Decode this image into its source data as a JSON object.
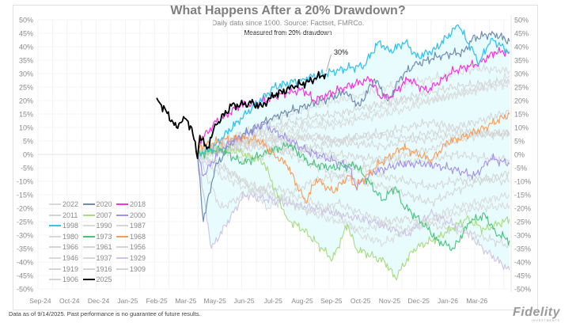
{
  "header": {
    "title": "What Happens After a 20% Drawdown?",
    "subtitle": "Daily data since 1900.  Source: Factset, FMRCo.",
    "note": "Measured from 20% drawdown"
  },
  "footer": {
    "disclaimer": "Data as of 9/14/2025. Past performance is no guarantee of future results.",
    "logo": "Fidelity",
    "logo_sub": "INVESTMENTS"
  },
  "chart_data": {
    "type": "line",
    "title": "What Happens After a 20% Drawdown?",
    "xlabel": "",
    "ylabel": "",
    "x_units": "trading days from 20% drawdown (approx.)",
    "xlim": [
      -137,
      268
    ],
    "ylim": [
      -50,
      50
    ],
    "y_tick_step": 5,
    "y_tick_format": "percent",
    "x_tick_labels": [
      "Sep-24",
      "Oct-24",
      "Dec-24",
      "Jan-25",
      "Feb-25",
      "Mar-25",
      "May-25",
      "Jun-25",
      "Jul-25",
      "Aug-25",
      "Sep-25",
      "Oct-25",
      "Nov-25",
      "Dec-25",
      "Jan-26",
      "Mar-26"
    ],
    "x_tick_start": -135,
    "x_tick_step": 25,
    "grid": true,
    "shaded_band": {
      "description": "range of all episodes",
      "color": "#e8fbfd"
    },
    "annotation": {
      "text": "30%",
      "x": 110,
      "y": 30
    },
    "legend_position": "bottom-left",
    "series": [
      {
        "name": "2022",
        "color": "#d9d9d9",
        "width": 1,
        "x": [
          0,
          20,
          40,
          60,
          80,
          100,
          120,
          140,
          160,
          180,
          200,
          220,
          240,
          268
        ],
        "y": [
          0,
          5,
          8,
          12,
          15,
          18,
          20,
          22,
          25,
          26,
          28,
          30,
          32,
          31
        ]
      },
      {
        "name": "2020",
        "color": "#6f8db3",
        "width": 1.2,
        "x": [
          0,
          5,
          15,
          30,
          50,
          65,
          80,
          127,
          139,
          152,
          164,
          175,
          186,
          197,
          211,
          229,
          236,
          254,
          268
        ],
        "y": [
          0,
          -25,
          -5,
          5,
          10,
          14,
          16,
          23,
          18,
          28,
          20,
          29,
          33,
          35,
          37,
          38,
          43,
          45,
          42
        ]
      },
      {
        "name": "2018",
        "color": "#ff2fe6",
        "width": 1.2,
        "x": [
          0,
          2,
          16,
          36,
          50,
          77,
          91,
          100,
          127,
          149,
          156,
          165,
          181,
          197,
          220,
          242,
          256,
          268
        ],
        "y": [
          0,
          5,
          12,
          18,
          19,
          23,
          24,
          20,
          25,
          28,
          22,
          21,
          28,
          23.5,
          31,
          34,
          38,
          38
        ]
      },
      {
        "name": "2011",
        "color": "#d2d2d2",
        "width": 1,
        "x": [
          0,
          20,
          40,
          60,
          80,
          100,
          120,
          140,
          160,
          180,
          200,
          220,
          240,
          268
        ],
        "y": [
          0,
          3,
          6,
          10,
          12,
          14,
          15,
          17,
          19,
          21,
          23,
          25,
          26,
          27
        ]
      },
      {
        "name": "2007",
        "color": "#a8dc7e",
        "width": 1.1,
        "x": [
          0,
          30,
          57,
          77,
          91,
          116,
          129,
          136,
          161,
          170,
          186,
          206,
          231,
          247,
          268
        ],
        "y": [
          0,
          2,
          -3,
          -24,
          -28,
          -39,
          -26,
          -35,
          -40,
          -46,
          -35,
          -31,
          -24,
          -28,
          -24
        ]
      },
      {
        "name": "2000",
        "color": "#a78ef2",
        "width": 1.1,
        "x": [
          0,
          5,
          20,
          57,
          93,
          130,
          136,
          152,
          175,
          197,
          220,
          238,
          252,
          268
        ],
        "y": [
          0,
          -8,
          2,
          11,
          1.5,
          -4.5,
          -12,
          -6.5,
          -3.5,
          -3.5,
          -5.5,
          -8,
          -1.5,
          -3.5
        ]
      },
      {
        "name": "1998",
        "color": "#35c3f2",
        "width": 1.3,
        "x": [
          0,
          12,
          34,
          66,
          90,
          129,
          143,
          156,
          165,
          179,
          188,
          204,
          224,
          242,
          252,
          268
        ],
        "y": [
          0,
          2,
          12,
          25,
          28,
          32,
          33,
          42,
          38,
          42,
          36,
          39,
          48,
          34,
          43,
          38
        ]
      },
      {
        "name": "1990",
        "color": "#dadada",
        "width": 1,
        "x": [
          0,
          20,
          40,
          60,
          80,
          100,
          120,
          140,
          160,
          180,
          200,
          220,
          240,
          268
        ],
        "y": [
          0,
          2,
          4,
          6,
          8,
          10,
          11,
          13,
          15,
          17,
          20,
          22,
          24,
          26
        ]
      },
      {
        "name": "1987",
        "color": "#d6d6d6",
        "width": 1,
        "x": [
          0,
          20,
          40,
          60,
          80,
          100,
          120,
          140,
          160,
          180,
          200,
          220,
          240,
          268
        ],
        "y": [
          0,
          -20,
          -15,
          -12,
          -14,
          -10,
          -8,
          -5,
          -2,
          0,
          2,
          5,
          7,
          8
        ]
      },
      {
        "name": "1980",
        "color": "#d9d9d9",
        "width": 1,
        "x": [
          0,
          20,
          40,
          60,
          80,
          100,
          120,
          140,
          160,
          180,
          200,
          220,
          240,
          268
        ],
        "y": [
          0,
          4,
          7,
          9,
          10,
          12,
          12,
          14,
          17,
          20,
          20,
          22,
          24,
          29
        ]
      },
      {
        "name": "1973",
        "color": "#48c47a",
        "width": 1.1,
        "x": [
          0,
          20,
          39,
          57,
          79,
          97,
          116,
          136,
          159,
          170,
          176,
          197,
          206,
          220,
          234,
          247,
          256,
          268
        ],
        "y": [
          0,
          2,
          -3.5,
          0.5,
          3.5,
          -3.5,
          -5,
          -4,
          -17,
          -12,
          -18.5,
          -27,
          -32,
          -35,
          -25,
          -22.5,
          -29,
          -32
        ]
      },
      {
        "name": "1968",
        "color": "#ff9a55",
        "width": 1.1,
        "x": [
          0,
          2,
          29,
          52,
          66,
          77,
          93,
          102,
          116,
          130,
          136,
          156,
          176,
          201,
          215,
          229,
          247,
          268
        ],
        "y": [
          0,
          3,
          6,
          5.5,
          0,
          -4,
          -18,
          -9,
          -14,
          -8,
          -12,
          -3.5,
          2.5,
          -2,
          4.5,
          6.5,
          10,
          15
        ]
      },
      {
        "name": "1966",
        "color": "#d4d4d4",
        "width": 1,
        "x": [
          0,
          20,
          40,
          60,
          80,
          100,
          120,
          140,
          160,
          180,
          200,
          220,
          240,
          268
        ],
        "y": [
          0,
          2,
          3,
          5,
          6,
          6,
          5,
          7,
          8,
          10,
          12,
          10,
          12,
          16
        ]
      },
      {
        "name": "1961",
        "color": "#d4d4d4",
        "width": 1,
        "x": [
          0,
          20,
          40,
          60,
          80,
          100,
          120,
          140,
          160,
          180,
          200,
          220,
          240,
          268
        ],
        "y": [
          0,
          3,
          4,
          5,
          6,
          7,
          5,
          6,
          7,
          6,
          8,
          9,
          8,
          7
        ]
      },
      {
        "name": "1956",
        "color": "#d4d4d4",
        "width": 1,
        "x": [
          0,
          20,
          40,
          60,
          80,
          100,
          120,
          140,
          160,
          180,
          200,
          220,
          240,
          268
        ],
        "y": [
          0,
          1,
          -2,
          0,
          2,
          3,
          4,
          4,
          3,
          5,
          6,
          7,
          8,
          8
        ]
      },
      {
        "name": "1946",
        "color": "#d9d9d9",
        "width": 1,
        "x": [
          0,
          20,
          40,
          60,
          80,
          100,
          120,
          140,
          160,
          180,
          200,
          220,
          240,
          268
        ],
        "y": [
          0,
          -8,
          -12,
          -15,
          -18,
          -22,
          -25,
          -28,
          -26,
          -28,
          -24,
          -20,
          -18,
          -15
        ]
      },
      {
        "name": "1937",
        "color": "#d9d9d9",
        "width": 1,
        "x": [
          0,
          20,
          40,
          60,
          80,
          100,
          120,
          140,
          160,
          180,
          200,
          220,
          240,
          268
        ],
        "y": [
          0,
          -5,
          -10,
          -20,
          -15,
          -18,
          -22,
          -30,
          -33,
          -28,
          -25,
          -22,
          -20,
          -19
        ]
      },
      {
        "name": "1929",
        "color": "#cfc3e6",
        "width": 1.1,
        "x": [
          0,
          12,
          40,
          100,
          150,
          180,
          200,
          230,
          245,
          268
        ],
        "y": [
          0,
          -35,
          -15,
          -20,
          -25,
          -30,
          -22,
          -28,
          -35,
          -43
        ]
      },
      {
        "name": "1919",
        "color": "#d4d4d4",
        "width": 1,
        "x": [
          0,
          20,
          40,
          60,
          80,
          100,
          120,
          140,
          160,
          180,
          200,
          220,
          240,
          268
        ],
        "y": [
          0,
          2,
          5,
          8,
          3,
          0,
          -2,
          -5,
          -8,
          -10,
          -12,
          -10,
          -9,
          -10
        ]
      },
      {
        "name": "1916",
        "color": "#d4d4d4",
        "width": 1,
        "x": [
          0,
          20,
          40,
          60,
          80,
          100,
          120,
          140,
          160,
          180,
          200,
          220,
          240,
          268
        ],
        "y": [
          0,
          3,
          5,
          3,
          0,
          -4,
          -8,
          -10,
          -12,
          -15,
          -18,
          -14,
          -10,
          -7
        ]
      },
      {
        "name": "1909",
        "color": "#d4d4d4",
        "width": 1,
        "x": [
          0,
          20,
          40,
          60,
          80,
          100,
          120,
          140,
          160,
          180,
          200,
          220,
          240,
          268
        ],
        "y": [
          0,
          1,
          2,
          3,
          2,
          1,
          0,
          -1,
          -2,
          -3,
          -2,
          0,
          -1,
          -2
        ]
      },
      {
        "name": "1906",
        "color": "#d4d4d4",
        "width": 1,
        "x": [
          0,
          20,
          40,
          60,
          80,
          100,
          120,
          140,
          160,
          180,
          200,
          220,
          240,
          268
        ],
        "y": [
          0,
          -4,
          -10,
          -14,
          -18,
          -22,
          -18,
          -22,
          -25,
          -24,
          -26,
          -28,
          -30,
          -34
        ]
      },
      {
        "name": "2025",
        "color": "#000000",
        "width": 1.8,
        "x": [
          -35,
          -18,
          -12,
          -5,
          0,
          2,
          8,
          16,
          29,
          46,
          55,
          66,
          82,
          95,
          110
        ],
        "y": [
          21,
          10,
          14,
          10,
          -1.5,
          7,
          2,
          11,
          18,
          19,
          18,
          22,
          25,
          27,
          30
        ]
      }
    ]
  }
}
